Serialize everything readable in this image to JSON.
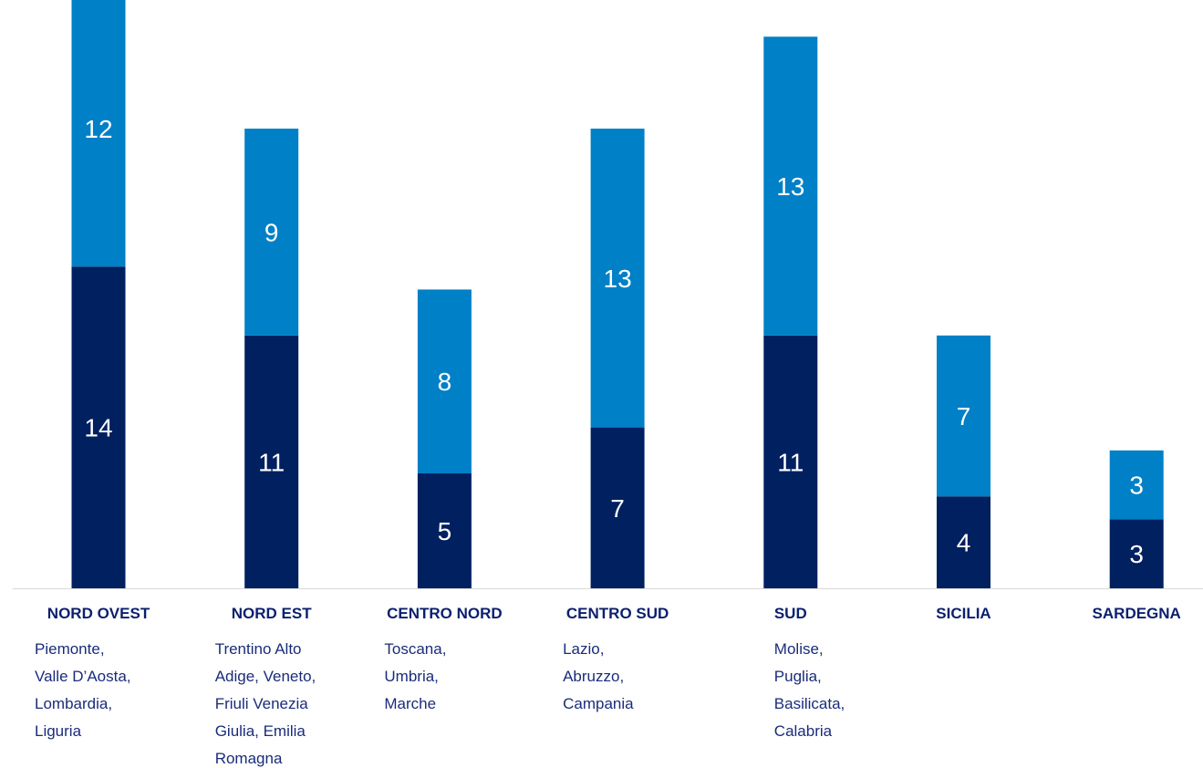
{
  "chart_data": {
    "type": "bar",
    "stacked": true,
    "categories": [
      "NORD OVEST",
      "NORD EST",
      "CENTRO NORD",
      "CENTRO SUD",
      "SUD",
      "SICILIA",
      "SARDEGNA"
    ],
    "subtitles": [
      [
        "Piemonte,",
        "Valle D’Aosta,",
        "Lombardia,",
        "Liguria"
      ],
      [
        "Trentino Alto",
        "Adige, Veneto,",
        "Friuli Venezia",
        "Giulia, Emilia",
        "Romagna"
      ],
      [
        "Toscana,",
        "Umbria,",
        "Marche"
      ],
      [
        "Lazio,",
        "Abruzzo,",
        "Campania"
      ],
      [
        "Molise,",
        "Puglia,",
        "Basilicata,",
        "Calabria"
      ],
      [],
      []
    ],
    "series": [
      {
        "values": [
          14,
          11,
          5,
          7,
          11,
          4,
          3
        ],
        "color": "#002060"
      },
      {
        "values": [
          12,
          9,
          8,
          13,
          13,
          7,
          3
        ],
        "color": "#0080c6"
      }
    ],
    "ylim": [
      0,
      25.2
    ],
    "grid": false,
    "legend": "none"
  }
}
